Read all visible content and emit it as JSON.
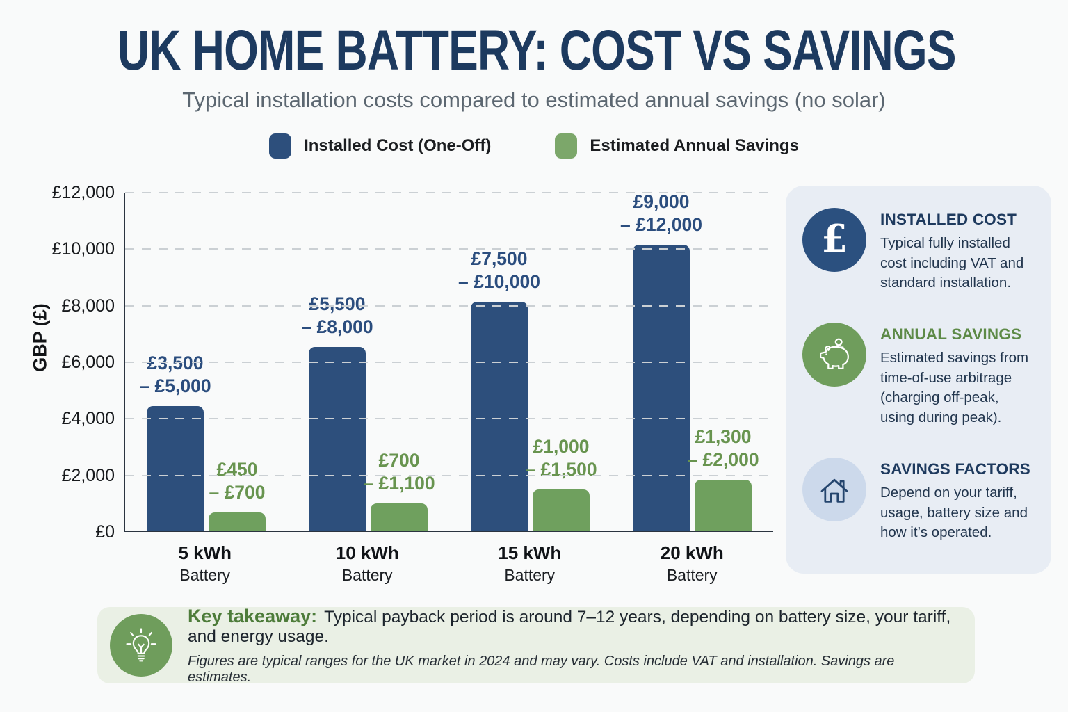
{
  "title": "UK HOME BATTERY: COST VS SAVINGS",
  "subtitle": "Typical installation costs compared to estimated annual savings (no solar)",
  "legend": [
    {
      "label": "Installed Cost (One-Off)",
      "color": "#2d4f7c"
    },
    {
      "label": "Estimated Annual Savings",
      "color": "#7ca76a"
    }
  ],
  "chart_data": {
    "type": "bar",
    "title": "UK Home Battery: Cost vs Savings",
    "categories": [
      "5 kWh",
      "10 kWh",
      "15 kWh",
      "20 kWh"
    ],
    "category_subline": "Battery",
    "ylabel": "GBP (£)",
    "ylim": [
      0,
      12000
    ],
    "yticks": [
      "£12,000",
      "£10,000",
      "£8,000",
      "£6,000",
      "£4,000",
      "£2,000",
      "£0"
    ],
    "grid": "horizontal-dashed",
    "legend_position": "top",
    "series": [
      {
        "name": "Installed Cost (One-Off)",
        "color": "#2d4f7c",
        "label_color": "#2b4d7e",
        "values": [
          4400,
          6500,
          8100,
          10100
        ],
        "range_labels": [
          "£3,500\n– £5,000",
          "£5,500\n– £8,000",
          "£7,500\n– £10,000",
          "£9,000\n– £12,000"
        ]
      },
      {
        "name": "Estimated Annual Savings",
        "color": "#6fa05e",
        "label_color": "#68944f",
        "values": [
          650,
          950,
          1450,
          1800
        ],
        "range_labels": [
          "£450\n– £700",
          "£700\n– £1,100",
          "£1,000\n– £1,500",
          "£1,300\n– £2,000"
        ]
      }
    ]
  },
  "sidebar": {
    "items": [
      {
        "icon": "pound-icon",
        "heading": "INSTALLED COST",
        "text": "Typical fully installed cost including VAT and standard installation."
      },
      {
        "icon": "piggy-bank-icon",
        "heading": "ANNUAL SAVINGS",
        "text": "Estimated savings from time-of-use arbitrage (charging off-peak, using during peak)."
      },
      {
        "icon": "house-icon",
        "heading": "SAVINGS FACTORS",
        "text": "Depend on your tariff, usage, battery size and how it’s operated."
      }
    ]
  },
  "takeaway": {
    "label": "Key takeaway:",
    "text": "Typical payback period is around 7–12 years, depending on battery size, your tariff, and energy usage.",
    "footnote": "Figures are typical ranges for the UK market in 2024 and may vary. Costs include VAT and installation. Savings are estimates."
  }
}
